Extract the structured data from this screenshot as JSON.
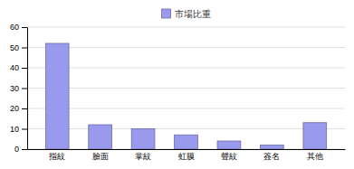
{
  "chart_data": {
    "type": "bar",
    "categories": [
      "指紋",
      "臉面",
      "掌紋",
      "虹膜",
      "聲紋",
      "簽名",
      "其他"
    ],
    "series": [
      {
        "name": "市場比重",
        "color": "#9999ee",
        "values": [
          52,
          12,
          10,
          7,
          4,
          2,
          13
        ]
      }
    ],
    "ylim": [
      0,
      60
    ],
    "yticks": [
      0,
      10,
      20,
      30,
      40,
      50,
      60
    ],
    "grid": true,
    "legend": "top"
  }
}
